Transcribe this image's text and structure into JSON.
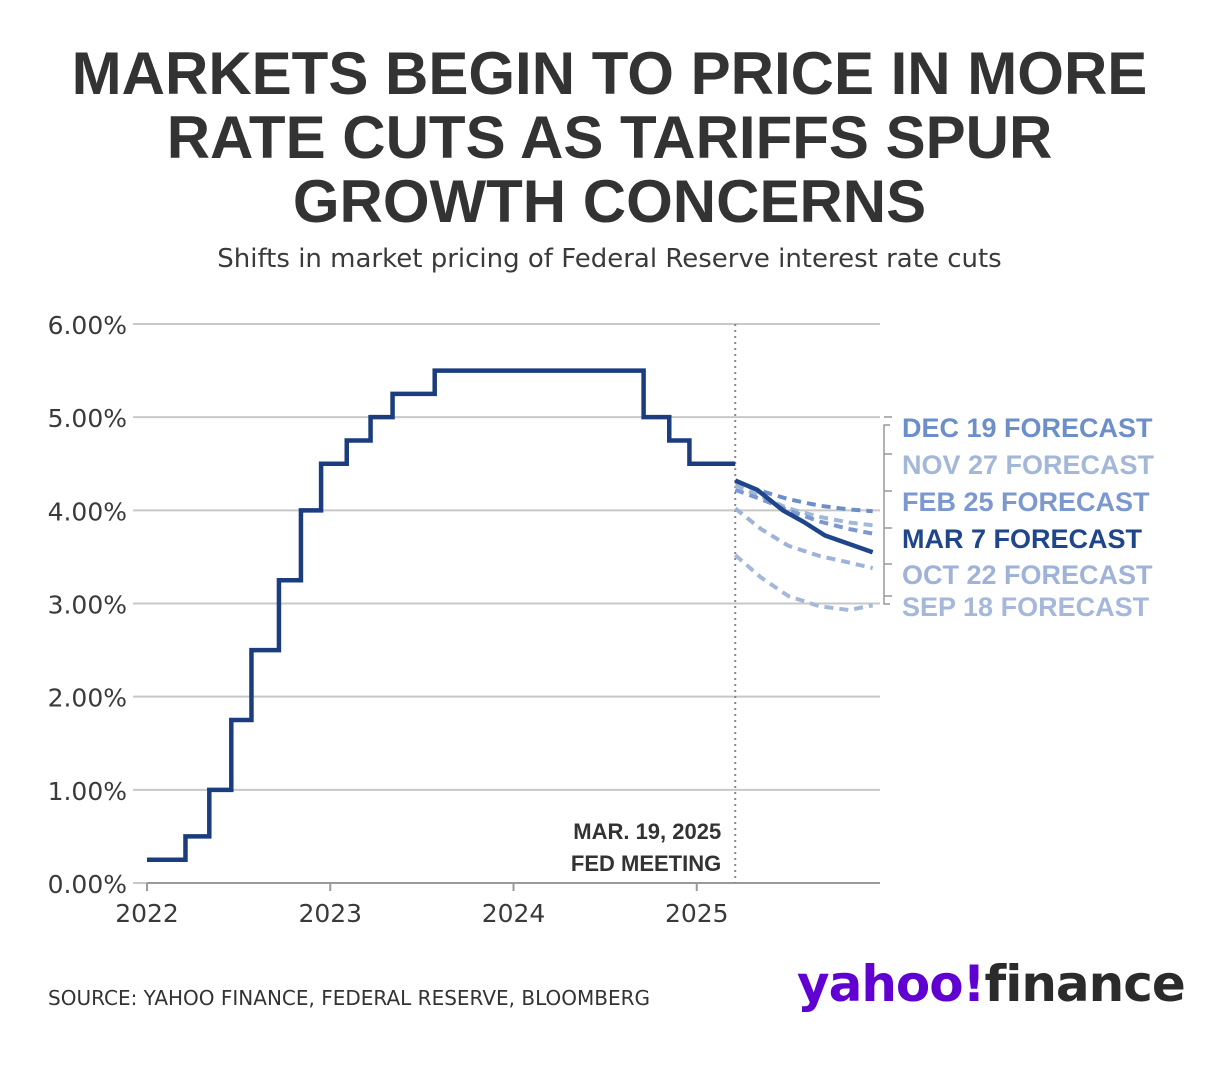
{
  "title_lines": [
    "MARKETS BEGIN TO PRICE IN MORE",
    "RATE CUTS AS TARIFFS SPUR",
    "GROWTH CONCERNS"
  ],
  "subtitle": "Shifts in market pricing of Federal Reserve interest rate cuts",
  "source": "SOURCE: YAHOO FINANCE, FEDERAL RESERVE, BLOOMBERG",
  "logo": {
    "yahoo": "yahoo!",
    "finance": "finance"
  },
  "colors": {
    "actual": "#1b3d80",
    "mar7": "#1f468a",
    "dec19": "#6d8fc9",
    "nov27": "#a3b7d9",
    "feb25": "#7c99cf",
    "oct22": "#9fb3d8",
    "sep18": "#a5b8da",
    "grid": "#c8c8c8",
    "text": "#333333"
  },
  "chart_data": {
    "type": "line",
    "title": "MARKETS BEGIN TO PRICE IN MORE RATE CUTS AS TARIFFS SPUR GROWTH CONCERNS",
    "subtitle": "Shifts in market pricing of Federal Reserve interest rate cuts",
    "xlim": [
      2022.0,
      2026.0
    ],
    "ylim": [
      0,
      6
    ],
    "x_ticks": [
      2022,
      2023,
      2024,
      2025
    ],
    "x_tick_labels": [
      "2022",
      "2023",
      "2024",
      "2025"
    ],
    "y_ticks": [
      0,
      1,
      2,
      3,
      4,
      5,
      6
    ],
    "y_tick_labels": [
      "0.00%",
      "1.00%",
      "2.00%",
      "3.00%",
      "4.00%",
      "5.00%",
      "6.00%"
    ],
    "grid": true,
    "annotation": {
      "lines": [
        "MAR. 19, 2025",
        "FED MEETING"
      ],
      "x": 2025.21
    },
    "series": [
      {
        "name": "",
        "style": "step",
        "color_key": "actual",
        "points": [
          [
            2022.0,
            0.25
          ],
          [
            2022.21,
            0.5
          ],
          [
            2022.34,
            1.0
          ],
          [
            2022.46,
            1.75
          ],
          [
            2022.57,
            2.5
          ],
          [
            2022.72,
            3.25
          ],
          [
            2022.84,
            4.0
          ],
          [
            2022.95,
            4.5
          ],
          [
            2023.09,
            4.75
          ],
          [
            2023.22,
            5.0
          ],
          [
            2023.34,
            5.25
          ],
          [
            2023.57,
            5.5
          ],
          [
            2024.71,
            5.0
          ],
          [
            2024.85,
            4.75
          ],
          [
            2024.96,
            4.5
          ],
          [
            2025.21,
            4.5
          ]
        ]
      },
      {
        "name": "DEC 19 FORECAST",
        "style": "dashed",
        "color_key": "dec19",
        "points": [
          [
            2025.21,
            4.31
          ],
          [
            2025.33,
            4.22
          ],
          [
            2025.5,
            4.12
          ],
          [
            2025.67,
            4.05
          ],
          [
            2025.83,
            4.01
          ],
          [
            2025.96,
            3.99
          ]
        ]
      },
      {
        "name": "NOV 27 FORECAST",
        "style": "dashed",
        "color_key": "nov27",
        "points": [
          [
            2025.21,
            4.27
          ],
          [
            2025.35,
            4.15
          ],
          [
            2025.5,
            4.02
          ],
          [
            2025.67,
            3.93
          ],
          [
            2025.83,
            3.87
          ],
          [
            2025.96,
            3.84
          ]
        ]
      },
      {
        "name": "FEB 25 FORECAST",
        "style": "dashed",
        "color_key": "feb25",
        "points": [
          [
            2025.21,
            4.22
          ],
          [
            2025.35,
            4.12
          ],
          [
            2025.5,
            4.0
          ],
          [
            2025.67,
            3.88
          ],
          [
            2025.83,
            3.8
          ],
          [
            2025.96,
            3.75
          ]
        ]
      },
      {
        "name": "MAR 7 FORECAST",
        "style": "solid",
        "color_key": "mar7",
        "points": [
          [
            2025.21,
            4.32
          ],
          [
            2025.33,
            4.22
          ],
          [
            2025.47,
            4.0
          ],
          [
            2025.58,
            3.88
          ],
          [
            2025.7,
            3.73
          ],
          [
            2025.83,
            3.64
          ],
          [
            2025.96,
            3.55
          ]
        ]
      },
      {
        "name": "OCT 22 FORECAST",
        "style": "dashed",
        "color_key": "oct22",
        "points": [
          [
            2025.21,
            4.02
          ],
          [
            2025.35,
            3.8
          ],
          [
            2025.5,
            3.62
          ],
          [
            2025.67,
            3.51
          ],
          [
            2025.83,
            3.44
          ],
          [
            2025.96,
            3.38
          ]
        ]
      },
      {
        "name": "SEP 18 FORECAST",
        "style": "dashed",
        "color_key": "sep18",
        "points": [
          [
            2025.21,
            3.52
          ],
          [
            2025.35,
            3.28
          ],
          [
            2025.5,
            3.08
          ],
          [
            2025.67,
            2.97
          ],
          [
            2025.83,
            2.93
          ],
          [
            2025.96,
            2.98
          ]
        ]
      }
    ]
  }
}
